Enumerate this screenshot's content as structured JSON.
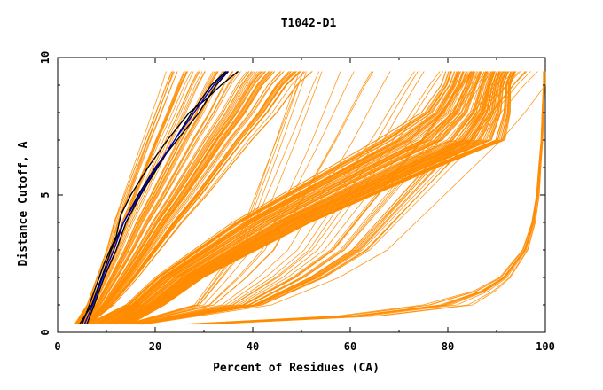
{
  "chart_data": {
    "type": "line",
    "title": "T1042-D1",
    "xlabel": "Percent of Residues (CA)",
    "ylabel": "Distance Cutoff, A",
    "xlim": [
      0,
      100
    ],
    "ylim": [
      0,
      10
    ],
    "x_ticks": [
      0,
      20,
      40,
      60,
      80,
      100
    ],
    "y_ticks": [
      0,
      5,
      10
    ],
    "x_minor_ticks": [
      10,
      30,
      50,
      70,
      90
    ],
    "y_minor_ticks": [
      1,
      2,
      3,
      4,
      6,
      7,
      8,
      9
    ],
    "grid": false,
    "legend": "none",
    "colors": {
      "models": "#ff8c00",
      "highlight_dark": "#000000",
      "highlight_blue": "#0000cd"
    },
    "series_groups": [
      {
        "color": "#ff8c00",
        "count": 90,
        "shared_y": [
          0.3,
          1,
          2,
          3,
          4,
          5,
          6,
          7,
          8,
          9,
          9.5
        ],
        "x_base": [
          3.5,
          6,
          8,
          10,
          11.5,
          13.5,
          15.5,
          17.5,
          19.5,
          21.5,
          22.5
        ],
        "x_delta": [
          3,
          5.5,
          8.5,
          11,
          14,
          17,
          19.5,
          22,
          25,
          27,
          29
        ]
      },
      {
        "color": "#ff8c00",
        "count": 110,
        "shared_y": [
          0.3,
          1,
          2,
          3,
          4,
          5,
          6,
          7,
          8,
          9,
          9.5
        ],
        "x_base": [
          6,
          14,
          20,
          28,
          36,
          46,
          56,
          66,
          75,
          79,
          80
        ],
        "x_delta": [
          9,
          8,
          10,
          13,
          16,
          19,
          22,
          26,
          18,
          14,
          14
        ]
      },
      {
        "color": "#ff8c00",
        "count": 40,
        "shared_y": [
          0.3,
          1,
          2,
          3,
          4,
          5,
          6,
          7,
          8,
          9,
          9.5
        ],
        "x_base": [
          14,
          28,
          32,
          36,
          38,
          40,
          42,
          44,
          46,
          48,
          49
        ],
        "x_delta": [
          4,
          16,
          26,
          32,
          36,
          40,
          44,
          48,
          51,
          54,
          56
        ]
      },
      {
        "color": "#ff8c00",
        "count": 12,
        "shared_y": [
          0.3,
          0.6,
          1,
          1.5,
          2,
          3,
          4,
          5,
          6,
          7,
          8,
          9,
          9.5
        ],
        "x_base": [
          24,
          55,
          72,
          84,
          90,
          95,
          97,
          98,
          98.5,
          99,
          99.2,
          99.5,
          99.5
        ],
        "x_delta": [
          8,
          12,
          14,
          6,
          3,
          1.5,
          1,
          0.8,
          0.6,
          0.5,
          0.5,
          0.4,
          0.4
        ]
      }
    ],
    "highlight_series": [
      {
        "color": "#000000",
        "x": [
          5,
          6.5,
          9.5,
          12,
          13,
          15,
          18.5,
          22.5,
          27,
          30.5,
          33.5,
          37
        ],
        "y": [
          0.3,
          1,
          2.5,
          3.5,
          4.3,
          5,
          6,
          7,
          8,
          8.5,
          9,
          9.5
        ]
      },
      {
        "color": "#000000",
        "x": [
          4.5,
          7,
          9,
          11,
          13.5,
          16.5,
          20,
          24.5,
          29,
          32.5,
          35
        ],
        "y": [
          0.3,
          1,
          2,
          3,
          4,
          5,
          6,
          7,
          8,
          9,
          9.5
        ]
      },
      {
        "color": "#000000",
        "x": [
          6,
          7.5,
          9.5,
          12,
          14,
          17,
          20.5,
          24,
          27.5,
          31.5,
          34.5
        ],
        "y": [
          0.3,
          1,
          2,
          3,
          4,
          5,
          6,
          7,
          8,
          9,
          9.5
        ]
      },
      {
        "color": "#0000cd",
        "x": [
          5.5,
          7.2,
          9.2,
          11.5,
          13.5,
          16.8,
          20.2,
          24,
          28,
          32,
          34.8
        ],
        "y": [
          0.3,
          1,
          2,
          3,
          4,
          5,
          6,
          7,
          8,
          9,
          9.5
        ]
      }
    ]
  }
}
